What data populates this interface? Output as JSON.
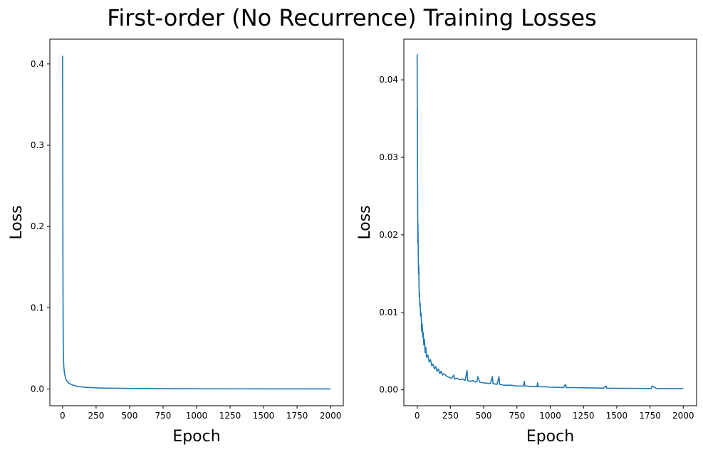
{
  "title": "First-order (No Recurrence) Training Losses",
  "line_color": "#1f77b4",
  "chart_data": [
    {
      "type": "line",
      "xlabel": "Epoch",
      "ylabel": "Loss",
      "xlim": [
        -95,
        2095
      ],
      "ylim": [
        -0.0205,
        0.4305
      ],
      "xticks": [
        0,
        250,
        500,
        750,
        1000,
        1250,
        1500,
        1750,
        2000
      ],
      "xtick_labels": [
        "0",
        "250",
        "500",
        "750",
        "1000",
        "1250",
        "1500",
        "1750",
        "2000"
      ],
      "yticks": [
        0.0,
        0.1,
        0.2,
        0.3,
        0.4
      ],
      "ytick_labels": [
        "0.0",
        "0.1",
        "0.2",
        "0.3",
        "0.4"
      ],
      "grid": false,
      "series": [
        {
          "x": [
            0,
            1,
            2,
            3,
            4,
            5,
            6,
            8,
            10,
            13,
            16,
            20,
            25,
            30,
            40,
            50,
            60,
            75,
            100,
            125,
            150,
            200,
            250,
            300,
            400,
            500,
            600,
            800,
            1000,
            1250,
            1500,
            1750,
            2000
          ],
          "y": [
            0.41,
            0.33,
            0.22,
            0.13,
            0.08,
            0.055,
            0.042,
            0.032,
            0.026,
            0.021,
            0.018,
            0.015,
            0.012,
            0.0105,
            0.0085,
            0.007,
            0.006,
            0.005,
            0.0038,
            0.003,
            0.0025,
            0.0019,
            0.0015,
            0.0012,
            0.001,
            0.0008,
            0.0007,
            0.0005,
            0.0004,
            0.0003,
            0.00025,
            0.0002,
            0.00018
          ]
        }
      ]
    },
    {
      "type": "line",
      "xlabel": "Epoch",
      "ylabel": "Loss",
      "xlim": [
        -100,
        2100
      ],
      "ylim": [
        -0.00205,
        0.04525
      ],
      "xticks": [
        0,
        250,
        500,
        750,
        1000,
        1250,
        1500,
        1750,
        2000
      ],
      "xtick_labels": [
        "0",
        "250",
        "500",
        "750",
        "1000",
        "1250",
        "1500",
        "1750",
        "2000"
      ],
      "yticks": [
        0.0,
        0.01,
        0.02,
        0.03,
        0.04
      ],
      "ytick_labels": [
        "0.00",
        "0.01",
        "0.02",
        "0.03",
        "0.04"
      ],
      "grid": false,
      "series": [
        {
          "x": [
            0,
            1,
            2,
            3,
            4,
            5,
            6,
            8,
            10,
            12,
            14,
            16,
            18,
            20,
            23,
            26,
            30,
            34,
            38,
            42,
            46,
            50,
            55,
            60,
            65,
            70,
            80,
            90,
            100,
            110,
            120,
            130,
            140,
            150,
            160,
            170,
            180,
            190,
            200,
            220,
            240,
            260,
            275,
            280,
            300,
            320,
            340,
            360,
            375,
            380,
            400,
            420,
            440,
            450,
            455,
            470,
            500,
            550,
            565,
            570,
            600,
            615,
            620,
            650,
            700,
            750,
            800,
            805,
            810,
            850,
            900,
            905,
            910,
            950,
            1000,
            1100,
            1115,
            1120,
            1200,
            1300,
            1400,
            1420,
            1425,
            1500,
            1600,
            1700,
            1760,
            1765,
            1800,
            1900,
            2000
          ],
          "y": [
            0.0433,
            0.035,
            0.036,
            0.028,
            0.0245,
            0.019,
            0.0215,
            0.0185,
            0.015,
            0.016,
            0.0135,
            0.012,
            0.0125,
            0.0108,
            0.0112,
            0.0095,
            0.0099,
            0.0075,
            0.0085,
            0.0068,
            0.0074,
            0.0058,
            0.0065,
            0.0048,
            0.0055,
            0.0042,
            0.0045,
            0.0036,
            0.0039,
            0.0031,
            0.0033,
            0.0027,
            0.003,
            0.0024,
            0.0027,
            0.0021,
            0.0024,
            0.0019,
            0.0021,
            0.0018,
            0.0016,
            0.0015,
            0.0019,
            0.0014,
            0.0015,
            0.0013,
            0.0014,
            0.0012,
            0.0025,
            0.0012,
            0.0011,
            0.0012,
            0.001,
            0.0011,
            0.0017,
            0.001,
            0.0009,
            0.0008,
            0.0017,
            0.0008,
            0.0007,
            0.0017,
            0.0007,
            0.0006,
            0.0006,
            0.0005,
            0.0005,
            0.0011,
            0.0005,
            0.00045,
            0.0004,
            0.0009,
            0.0004,
            0.0004,
            0.00035,
            0.0003,
            0.0007,
            0.0003,
            0.00028,
            0.00025,
            0.00022,
            0.0005,
            0.00022,
            0.0002,
            0.00019,
            0.00018,
            0.00017,
            0.0005,
            0.00017,
            0.00016,
            0.00015
          ]
        }
      ]
    }
  ]
}
